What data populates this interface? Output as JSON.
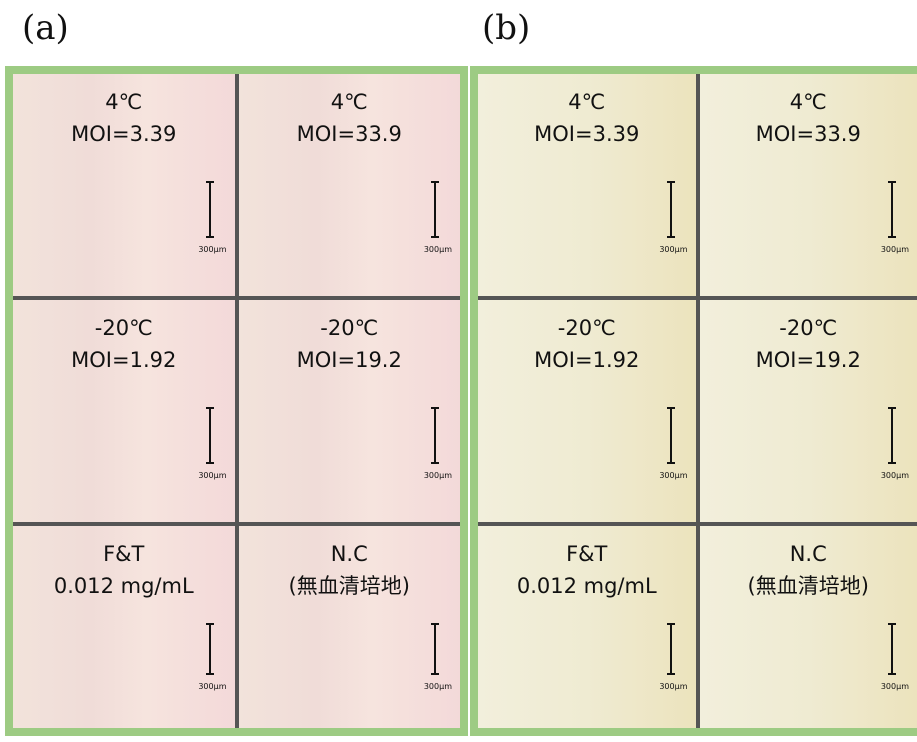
{
  "panels": [
    {
      "label": "(a)",
      "cells": [
        {
          "lines": [
            "4℃",
            "MOI=3.39"
          ],
          "scale_bar": "300μm"
        },
        {
          "lines": [
            "4℃",
            "MOI=33.9"
          ],
          "scale_bar": "300μm"
        },
        {
          "lines": [
            "-20℃",
            "MOI=1.92"
          ],
          "scale_bar": "300μm"
        },
        {
          "lines": [
            "-20℃",
            "MOI=19.2"
          ],
          "scale_bar": "300μm"
        },
        {
          "lines": [
            "F&T",
            "0.012 mg/mL"
          ],
          "scale_bar": "300μm"
        },
        {
          "lines": [
            "N.C",
            "(無血清培地)"
          ],
          "scale_bar": "300μm"
        }
      ]
    },
    {
      "label": "(b)",
      "cells": [
        {
          "lines": [
            "4℃",
            "MOI=3.39"
          ],
          "scale_bar": "300μm"
        },
        {
          "lines": [
            "4℃",
            "MOI=33.9"
          ],
          "scale_bar": "300μm"
        },
        {
          "lines": [
            "-20℃",
            "MOI=1.92"
          ],
          "scale_bar": "300μm"
        },
        {
          "lines": [
            "-20℃",
            "MOI=19.2"
          ],
          "scale_bar": "300μm"
        },
        {
          "lines": [
            "F&T",
            "0.012 mg/mL"
          ],
          "scale_bar": "300μm"
        },
        {
          "lines": [
            "N.C",
            "(無血清培地)"
          ],
          "scale_bar": "300μm"
        }
      ]
    }
  ]
}
